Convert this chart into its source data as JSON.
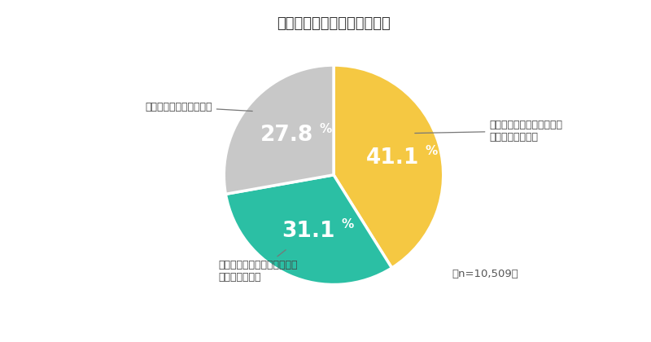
{
  "title": "子ども食堂を知っていますか",
  "segments": [
    {
      "label": "名前を聞いたことがあり、\n内容も知っている",
      "value": 41.1,
      "color": "#F5C842",
      "text_color": "#ffffff",
      "pct_val": "41.1",
      "pct_pct": "%"
    },
    {
      "label": "名前を聞いたことはあるが、\n内容は知らない",
      "value": 31.1,
      "color": "#2BBFA4",
      "text_color": "#ffffff",
      "pct_val": "31.1",
      "pct_pct": "%"
    },
    {
      "label": "名前も聞いたことがない",
      "value": 27.8,
      "color": "#C8C8C8",
      "text_color": "#ffffff",
      "pct_val": "27.8",
      "pct_pct": "%"
    }
  ],
  "note": "（n=10,509）",
  "background_color": "#ffffff",
  "title_fontsize": 13,
  "label_fontsize": 9,
  "pct_fontsize": 19,
  "pct_small_fontsize": 11
}
